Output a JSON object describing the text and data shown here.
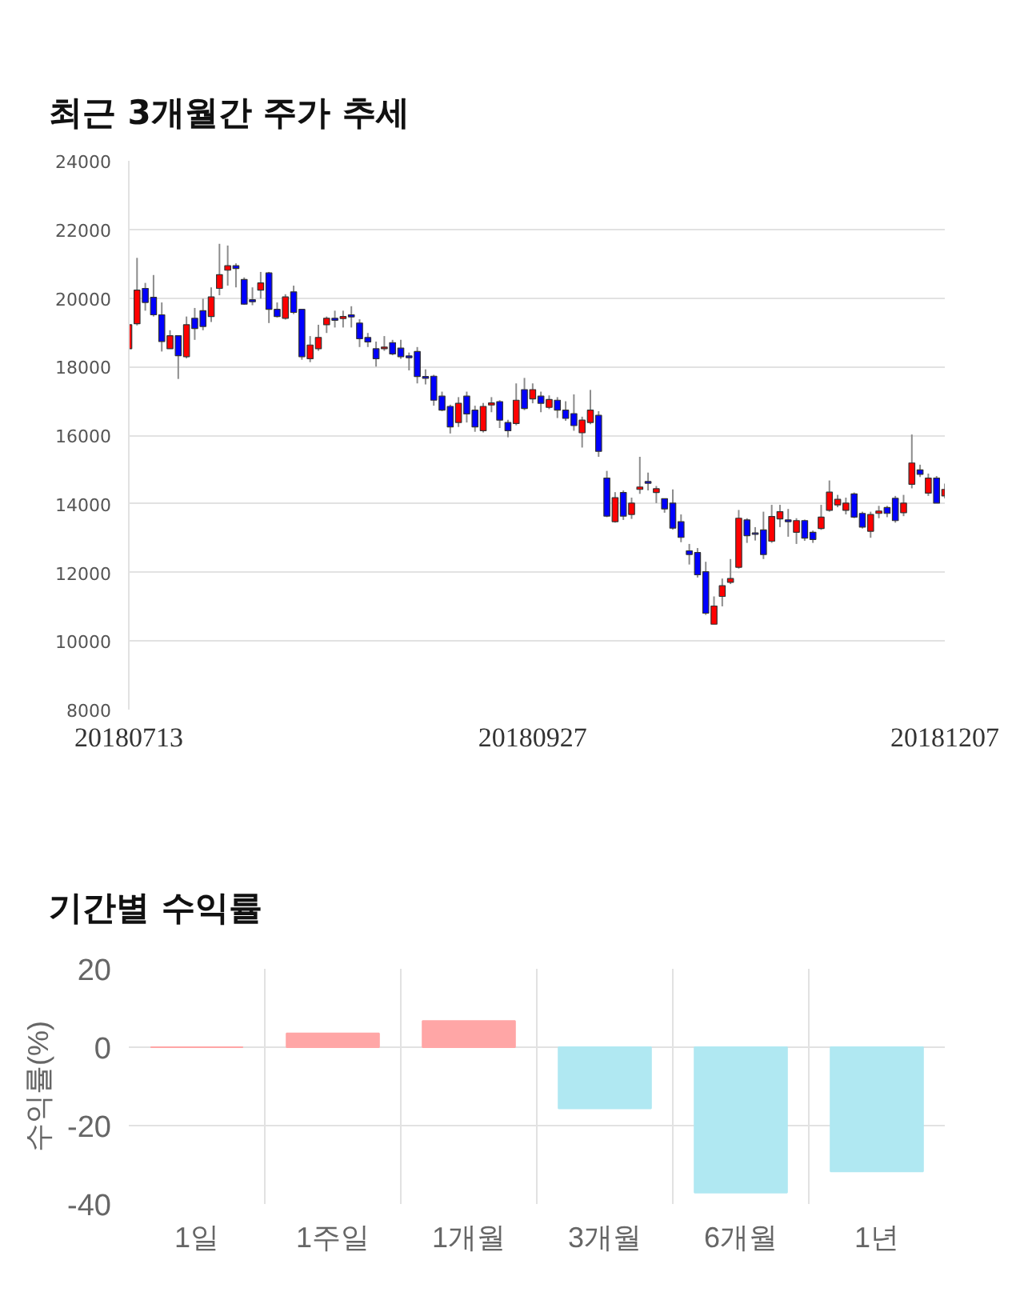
{
  "chart_data": [
    {
      "type": "candlestick",
      "title": "최근 3개월간 주가 추세",
      "categories": [
        "20180713",
        null,
        null,
        null,
        null,
        null,
        null,
        null,
        null,
        null,
        null,
        null,
        null,
        null,
        null,
        null,
        null,
        null,
        null,
        null,
        null,
        null,
        null,
        null,
        null,
        null,
        null,
        null,
        null,
        null,
        null,
        null,
        null,
        null,
        null,
        null,
        null,
        null,
        null,
        null,
        null,
        null,
        null,
        null,
        null,
        null,
        null,
        null,
        null,
        "20180927",
        null,
        null,
        null,
        null,
        null,
        null,
        null,
        null,
        null,
        null,
        null,
        null,
        null,
        null,
        null,
        null,
        null,
        null,
        null,
        null,
        null,
        null,
        null,
        null,
        null,
        null,
        null,
        null,
        null,
        null,
        null,
        null,
        null,
        null,
        null,
        null,
        null,
        null,
        null,
        null,
        null,
        null,
        null,
        null,
        null,
        null,
        null,
        null,
        null,
        "20181207"
      ],
      "ohlc": [
        [
          18520,
          19300,
          18520,
          19220
        ],
        [
          19250,
          21170,
          19200,
          20230
        ],
        [
          20280,
          20440,
          19630,
          19870
        ],
        [
          20020,
          20670,
          19460,
          19510
        ],
        [
          19510,
          19870,
          18440,
          18730
        ],
        [
          18520,
          19060,
          18520,
          18900
        ],
        [
          18900,
          18900,
          17640,
          18320
        ],
        [
          18290,
          19460,
          18240,
          19220
        ],
        [
          19410,
          19710,
          18780,
          19110
        ],
        [
          19630,
          19980,
          19060,
          19170
        ],
        [
          19460,
          20310,
          19300,
          20030
        ],
        [
          20280,
          21580,
          20080,
          20680
        ],
        [
          20810,
          21530,
          20360,
          20940
        ],
        [
          20940,
          21010,
          20310,
          20860
        ],
        [
          20540,
          20600,
          19800,
          19820
        ],
        [
          19950,
          20310,
          19790,
          19890
        ],
        [
          20230,
          20760,
          19980,
          20440
        ],
        [
          20730,
          20760,
          19270,
          19670
        ],
        [
          19670,
          19870,
          19430,
          19460
        ],
        [
          19410,
          20110,
          19370,
          20030
        ],
        [
          20180,
          20360,
          19530,
          19580
        ],
        [
          19670,
          19670,
          18200,
          18290
        ],
        [
          18230,
          18890,
          18130,
          18630
        ],
        [
          18520,
          19220,
          18460,
          18850
        ],
        [
          19220,
          19460,
          18980,
          19410
        ],
        [
          19410,
          19630,
          19140,
          19350
        ],
        [
          19400,
          19630,
          19140,
          19460
        ],
        [
          19510,
          19760,
          19140,
          19450
        ],
        [
          19270,
          19380,
          18570,
          18810
        ],
        [
          18850,
          18980,
          18570,
          18720
        ],
        [
          18520,
          18730,
          18000,
          18230
        ],
        [
          18520,
          18890,
          18460,
          18570
        ],
        [
          18700,
          18780,
          18330,
          18370
        ],
        [
          18540,
          18780,
          18230,
          18290
        ],
        [
          18310,
          18410,
          17890,
          18260
        ],
        [
          18440,
          18570,
          17510,
          17710
        ],
        [
          17710,
          17920,
          17480,
          17660
        ],
        [
          17720,
          17760,
          16860,
          17020
        ],
        [
          17140,
          17270,
          16700,
          16730
        ],
        [
          16840,
          16890,
          16050,
          16240
        ],
        [
          16370,
          17110,
          16240,
          16930
        ],
        [
          17140,
          17270,
          16370,
          16620
        ],
        [
          16730,
          16860,
          16100,
          16240
        ],
        [
          16130,
          16940,
          16080,
          16840
        ],
        [
          16880,
          17110,
          16670,
          16940
        ],
        [
          16980,
          17020,
          16210,
          16440
        ],
        [
          16370,
          16450,
          15940,
          16130
        ],
        [
          16340,
          17510,
          16290,
          17020
        ],
        [
          17330,
          17670,
          16730,
          16780
        ],
        [
          17060,
          17510,
          16930,
          17330
        ],
        [
          17140,
          17270,
          16670,
          16930
        ],
        [
          16810,
          17160,
          16760,
          17040
        ],
        [
          17020,
          17110,
          16500,
          16730
        ],
        [
          16730,
          16990,
          16420,
          16490
        ],
        [
          16630,
          17190,
          16130,
          16280
        ],
        [
          16070,
          16540,
          15640,
          16440
        ],
        [
          16370,
          17320,
          16320,
          16730
        ],
        [
          16580,
          16700,
          15370,
          15530
        ],
        [
          14750,
          14960,
          13610,
          13640
        ],
        [
          13480,
          14340,
          13450,
          14180
        ],
        [
          14330,
          14390,
          13530,
          13640
        ],
        [
          13690,
          14180,
          13560,
          14020
        ],
        [
          14420,
          15370,
          14290,
          14490
        ],
        [
          14650,
          14910,
          14390,
          14600
        ],
        [
          14330,
          14520,
          14020,
          14440
        ],
        [
          14150,
          14150,
          13740,
          13850
        ],
        [
          14020,
          14420,
          13250,
          13290
        ],
        [
          13480,
          13690,
          12880,
          13020
        ],
        [
          12630,
          12830,
          12230,
          12520
        ],
        [
          12580,
          12710,
          11850,
          11930
        ],
        [
          12020,
          12310,
          10760,
          10810
        ],
        [
          10490,
          11300,
          10490,
          11020
        ],
        [
          11300,
          11820,
          11010,
          11610
        ],
        [
          11710,
          12390,
          11660,
          11820
        ],
        [
          12150,
          13820,
          12110,
          13580
        ],
        [
          13530,
          13580,
          12860,
          13070
        ],
        [
          13150,
          13320,
          12930,
          13110
        ],
        [
          13240,
          13770,
          12390,
          12520
        ],
        [
          12910,
          13970,
          12860,
          13630
        ],
        [
          13560,
          13970,
          13320,
          13770
        ],
        [
          13530,
          13850,
          13040,
          13480
        ],
        [
          13170,
          13580,
          12830,
          13510
        ],
        [
          13510,
          13540,
          12920,
          13000
        ],
        [
          13170,
          13220,
          12860,
          12960
        ],
        [
          13280,
          13970,
          13240,
          13610
        ],
        [
          13810,
          14680,
          13770,
          14340
        ],
        [
          13970,
          14260,
          13900,
          14130
        ],
        [
          13810,
          14180,
          13690,
          14020
        ],
        [
          14290,
          14330,
          13580,
          13610
        ],
        [
          13720,
          13770,
          13280,
          13320
        ],
        [
          13200,
          13770,
          13010,
          13690
        ],
        [
          13720,
          13940,
          13580,
          13790
        ],
        [
          13890,
          13940,
          13610,
          13720
        ],
        [
          14160,
          14230,
          13450,
          13510
        ],
        [
          13740,
          14260,
          13640,
          14020
        ],
        [
          14570,
          16020,
          14450,
          15190
        ],
        [
          14990,
          15140,
          14780,
          14860
        ],
        [
          14310,
          14880,
          14230,
          14750
        ],
        [
          14750,
          14810,
          14020,
          14020
        ],
        [
          14230,
          14590,
          14160,
          14420
        ]
      ],
      "colors": [
        "#ff0000",
        "#ff0000",
        "#0000ff",
        "#0000ff",
        "#0000ff",
        "#ff0000",
        "#0000ff",
        "#ff0000",
        "#0000ff",
        "#0000ff",
        "#ff0000",
        "#ff0000",
        "#ff0000",
        "#0000ff",
        "#0000ff",
        "#0000ff",
        "#ff0000",
        "#0000ff",
        "#0000ff",
        "#ff0000",
        "#0000ff",
        "#0000ff",
        "#ff0000",
        "#ff0000",
        "#ff0000",
        "#0000ff",
        "#ff0000",
        "#0000ff",
        "#0000ff",
        "#0000ff",
        "#0000ff",
        "#ff0000",
        "#0000ff",
        "#0000ff",
        "#0000ff",
        "#0000ff",
        "#0000ff",
        "#0000ff",
        "#0000ff",
        "#0000ff",
        "#ff0000",
        "#0000ff",
        "#0000ff",
        "#ff0000",
        "#ff0000",
        "#0000ff",
        "#0000ff",
        "#ff0000",
        "#0000ff",
        "#ff0000",
        "#0000ff",
        "#ff0000",
        "#0000ff",
        "#0000ff",
        "#0000ff",
        "#ff0000",
        "#ff0000",
        "#0000ff",
        "#0000ff",
        "#ff0000",
        "#0000ff",
        "#ff0000",
        "#ff0000",
        "#0000ff",
        "#ff0000",
        "#0000ff",
        "#0000ff",
        "#0000ff",
        "#0000ff",
        "#0000ff",
        "#0000ff",
        "#ff0000",
        "#ff0000",
        "#ff0000",
        "#ff0000",
        "#0000ff",
        "#0000ff",
        "#0000ff",
        "#ff0000",
        "#ff0000",
        "#0000ff",
        "#ff0000",
        "#0000ff",
        "#0000ff",
        "#ff0000",
        "#ff0000",
        "#ff0000",
        "#ff0000",
        "#0000ff",
        "#0000ff",
        "#ff0000",
        "#ff0000",
        "#0000ff",
        "#0000ff",
        "#ff0000",
        "#ff0000",
        "#0000ff",
        "#ff0000",
        "#0000ff",
        "#ff0000"
      ],
      "ylim": [
        8000,
        24000
      ],
      "yticks": [
        8000,
        10000,
        12000,
        14000,
        16000,
        18000,
        20000,
        22000,
        24000
      ],
      "grid": "y"
    },
    {
      "type": "bar",
      "title": "기간별 수익률",
      "ylabel": "수익률(%)",
      "categories": [
        "1일",
        "1주일",
        "1개월",
        "3개월",
        "6개월",
        "1년"
      ],
      "values": [
        0,
        3.5,
        6.7,
        -15.6,
        -37.1,
        -31.7
      ],
      "colors": [
        "#ffa6a6",
        "#ffa6a6",
        "#ffa6a6",
        "#b0e8f2",
        "#b0e8f2",
        "#b0e8f2"
      ],
      "ylim": [
        -40,
        20
      ],
      "yticks": [
        -40,
        -20,
        0,
        20
      ],
      "grid": true
    }
  ]
}
